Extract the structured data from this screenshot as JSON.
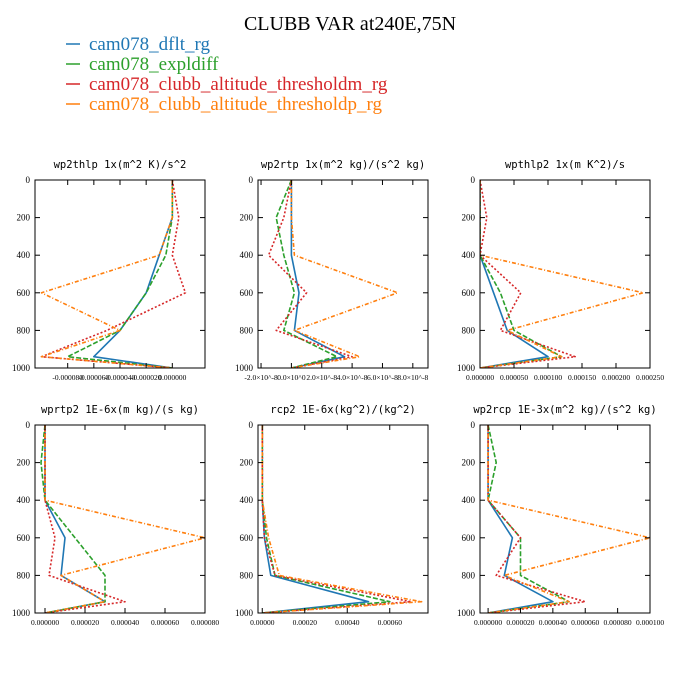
{
  "title": "CLUBB VAR at240E,75N",
  "legend": [
    {
      "label": "cam078_dflt_rg",
      "color": "#1f77b4"
    },
    {
      "label": "cam078_expldiff",
      "color": "#2ca02c"
    },
    {
      "label": "cam078_clubb_altitude_thresholdm_rg",
      "color": "#d62728"
    },
    {
      "label": "cam078_clubb_altitude_thresholdp_rg",
      "color": "#ff7f0e"
    }
  ],
  "chart_data": [
    {
      "type": "line",
      "title": "wp2thlp   1x(m^2 K)/s^2",
      "y": [
        0,
        200,
        400,
        600,
        800,
        940,
        1000
      ],
      "ylim": [
        1000,
        0
      ],
      "xlim": [
        -0.000105,
        2.5e-05
      ],
      "yticks": [
        "0",
        "200",
        "400",
        "600",
        "800",
        "1000"
      ],
      "xticks": [
        {
          "v": -8e-05,
          "label": "-0.000080"
        },
        {
          "v": -6e-05,
          "label": "-0.000060"
        },
        {
          "v": -4e-05,
          "label": "-0.000040"
        },
        {
          "v": -2e-05,
          "label": "-0.000020"
        },
        {
          "v": 0.0,
          "label": "0.000000"
        }
      ],
      "series": [
        {
          "name": "cam078_dflt_rg",
          "values": [
            0.0,
            0.0,
            -1e-05,
            -2e-05,
            -4e-05,
            -6e-05,
            0.0
          ]
        },
        {
          "name": "cam078_expldiff",
          "values": [
            0.0,
            0.0,
            -5e-06,
            -2e-05,
            -4e-05,
            -8e-05,
            0.0
          ]
        },
        {
          "name": "cam078_clubb_altitude_thresholdm_rg",
          "values": [
            0.0,
            5e-06,
            0.0,
            1e-05,
            -5e-05,
            -0.0001,
            0.0
          ]
        },
        {
          "name": "cam078_clubb_altitude_thresholdp_rg",
          "values": [
            0.0,
            0.0,
            -1e-05,
            -0.0001,
            -4e-05,
            -0.0001,
            0.0
          ]
        }
      ]
    },
    {
      "type": "line",
      "title": "wp2rtp   1x(m^2 kg)/(s^2 kg)",
      "y": [
        0,
        200,
        400,
        600,
        800,
        940,
        1000
      ],
      "ylim": [
        1000,
        0
      ],
      "xlim": [
        -2.2e-08,
        9e-08
      ],
      "yticks": [
        "0",
        "200",
        "400",
        "600",
        "800",
        "1000"
      ],
      "xticks": [
        {
          "v": -2e-08,
          "label": "-2.0×10^-8"
        },
        {
          "v": 0,
          "label": "0.0×10^0"
        },
        {
          "v": 2e-08,
          "label": "2.0×10^-8"
        },
        {
          "v": 4e-08,
          "label": "4.0×10^-8"
        },
        {
          "v": 6e-08,
          "label": "6.0×10^-8"
        },
        {
          "v": 8e-08,
          "label": "8.0×10^-8"
        }
      ],
      "series": [
        {
          "name": "cam078_dflt_rg",
          "values": [
            0.0,
            0.0,
            0.0,
            5e-09,
            2e-09,
            3.5e-08,
            0.0
          ]
        },
        {
          "name": "cam078_expldiff",
          "values": [
            0.0,
            -1e-08,
            -5e-09,
            2e-09,
            -5e-09,
            3e-08,
            0.0
          ]
        },
        {
          "name": "cam078_clubb_altitude_thresholdm_rg",
          "values": [
            0.0,
            -5e-09,
            -1.5e-08,
            1e-08,
            -1e-08,
            4e-08,
            0.0
          ]
        },
        {
          "name": "cam078_clubb_altitude_thresholdp_rg",
          "values": [
            0.0,
            0.0,
            2e-09,
            7e-08,
            2e-09,
            4.5e-08,
            0.0
          ]
        }
      ]
    },
    {
      "type": "line",
      "title": "wpthlp2   1x(m K^2)/s",
      "y": [
        0,
        200,
        400,
        600,
        800,
        940,
        1000
      ],
      "ylim": [
        1000,
        0
      ],
      "xlim": [
        0.0,
        0.00025
      ],
      "yticks": [
        "0",
        "200",
        "400",
        "600",
        "800",
        "1000"
      ],
      "xticks": [
        {
          "v": 0.0,
          "label": "0.000000"
        },
        {
          "v": 5e-05,
          "label": "0.000050"
        },
        {
          "v": 0.0001,
          "label": "0.000100"
        },
        {
          "v": 0.00015,
          "label": "0.000150"
        },
        {
          "v": 0.0002,
          "label": "0.000200"
        },
        {
          "v": 0.00025,
          "label": "0.000250"
        }
      ],
      "series": [
        {
          "name": "cam078_dflt_rg",
          "values": [
            0.0,
            0.0,
            0.0,
            2e-05,
            4e-05,
            0.0001,
            0.0
          ]
        },
        {
          "name": "cam078_expldiff",
          "values": [
            0.0,
            0.0,
            0.0,
            3e-05,
            5e-05,
            0.00012,
            0.0
          ]
        },
        {
          "name": "cam078_clubb_altitude_thresholdm_rg",
          "values": [
            0.0,
            1e-05,
            0.0,
            6e-05,
            3e-05,
            0.00014,
            0.0
          ]
        },
        {
          "name": "cam078_clubb_altitude_thresholdp_rg",
          "values": [
            0.0,
            0.0,
            0.0,
            0.00024,
            4e-05,
            0.00012,
            0.0
          ]
        }
      ]
    },
    {
      "type": "line",
      "title": "wprtp2   1E-6x(m kg)/(s kg)",
      "y": [
        0,
        200,
        400,
        600,
        800,
        940,
        1000
      ],
      "ylim": [
        1000,
        0
      ],
      "xlim": [
        -5e-06,
        8e-05
      ],
      "yticks": [
        "0",
        "200",
        "400",
        "600",
        "800",
        "1000"
      ],
      "xticks": [
        {
          "v": 0.0,
          "label": "0.000000"
        },
        {
          "v": 2e-05,
          "label": "0.000020"
        },
        {
          "v": 4e-05,
          "label": "0.000040"
        },
        {
          "v": 6e-05,
          "label": "0.000060"
        },
        {
          "v": 8e-05,
          "label": "0.000080"
        }
      ],
      "series": [
        {
          "name": "cam078_dflt_rg",
          "values": [
            0.0,
            0.0,
            0.0,
            1e-05,
            8e-06,
            3e-05,
            0.0
          ]
        },
        {
          "name": "cam078_expldiff",
          "values": [
            0.0,
            -2e-06,
            0.0,
            1.5e-05,
            3e-05,
            3e-05,
            0.0
          ]
        },
        {
          "name": "cam078_clubb_altitude_thresholdm_rg",
          "values": [
            0.0,
            0.0,
            0.0,
            5e-06,
            2e-06,
            4e-05,
            0.0
          ]
        },
        {
          "name": "cam078_clubb_altitude_thresholdp_rg",
          "values": [
            0.0,
            0.0,
            0.0,
            8e-05,
            8e-06,
            3e-05,
            0.0
          ]
        }
      ]
    },
    {
      "type": "line",
      "title": "rcp2   1E-6x(kg^2)/(kg^2)",
      "y": [
        0,
        200,
        400,
        600,
        800,
        940,
        1000
      ],
      "ylim": [
        1000,
        0
      ],
      "xlim": [
        -2e-05,
        0.00078
      ],
      "yticks": [
        "0",
        "200",
        "400",
        "600",
        "800",
        "1000"
      ],
      "xticks": [
        {
          "v": 0.0,
          "label": "0.00000"
        },
        {
          "v": 0.0002,
          "label": "0.00020"
        },
        {
          "v": 0.0004,
          "label": "0.00040"
        },
        {
          "v": 0.0006,
          "label": "0.00060"
        }
      ],
      "series": [
        {
          "name": "cam078_dflt_rg",
          "values": [
            0.0,
            0.0,
            0.0,
            1e-05,
            4e-05,
            0.0005,
            0.0
          ]
        },
        {
          "name": "cam078_expldiff",
          "values": [
            0.0,
            0.0,
            0.0,
            2e-05,
            6e-05,
            0.0006,
            0.0
          ]
        },
        {
          "name": "cam078_clubb_altitude_thresholdm_rg",
          "values": [
            0.0,
            0.0,
            0.0,
            1e-05,
            6e-05,
            0.0007,
            0.0
          ]
        },
        {
          "name": "cam078_clubb_altitude_thresholdp_rg",
          "values": [
            0.0,
            0.0,
            0.0,
            3e-05,
            8e-05,
            0.00075,
            0.0
          ]
        }
      ]
    },
    {
      "type": "line",
      "title": "wp2rcp   1E-3x(m^2 kg)/(s^2 kg)",
      "y": [
        0,
        200,
        400,
        600,
        800,
        940,
        1000
      ],
      "ylim": [
        1000,
        0
      ],
      "xlim": [
        -5e-06,
        0.0001
      ],
      "yticks": [
        "0",
        "200",
        "400",
        "600",
        "800",
        "1000"
      ],
      "xticks": [
        {
          "v": 0.0,
          "label": "0.000000"
        },
        {
          "v": 2e-05,
          "label": "0.000020"
        },
        {
          "v": 4e-05,
          "label": "0.000040"
        },
        {
          "v": 6e-05,
          "label": "0.000060"
        },
        {
          "v": 8e-05,
          "label": "0.000080"
        },
        {
          "v": 0.0001,
          "label": "0.000100"
        }
      ],
      "series": [
        {
          "name": "cam078_dflt_rg",
          "values": [
            0.0,
            0.0,
            0.0,
            1.5e-05,
            1e-05,
            4e-05,
            0.0
          ]
        },
        {
          "name": "cam078_expldiff",
          "values": [
            0.0,
            5e-06,
            0.0,
            2e-05,
            2e-05,
            5e-05,
            0.0
          ]
        },
        {
          "name": "cam078_clubb_altitude_thresholdm_rg",
          "values": [
            0.0,
            0.0,
            0.0,
            2e-05,
            5e-06,
            6e-05,
            0.0
          ]
        },
        {
          "name": "cam078_clubb_altitude_thresholdp_rg",
          "values": [
            0.0,
            0.0,
            0.0,
            0.0001,
            1e-05,
            5e-05,
            0.0
          ]
        }
      ]
    }
  ]
}
